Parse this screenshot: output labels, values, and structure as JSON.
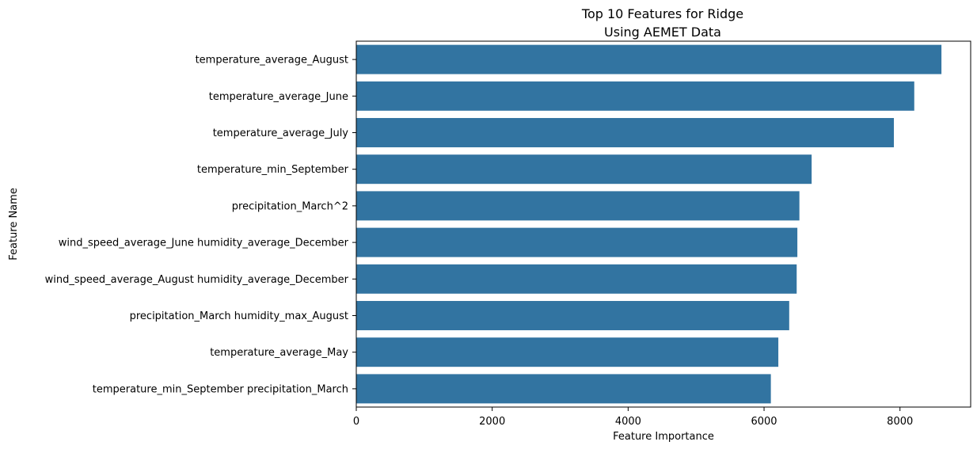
{
  "chart_data": {
    "type": "bar",
    "orientation": "horizontal",
    "title": "Top 10 Features for Ridge\nUsing AEMET Data",
    "xlabel": "Feature Importance",
    "ylabel": "Feature Name",
    "categories": [
      "temperature_average_August",
      "temperature_average_June",
      "temperature_average_July",
      "temperature_min_September",
      "precipitation_March^2",
      "wind_speed_average_June humidity_average_December",
      "wind_speed_average_August humidity_average_December",
      "precipitation_March humidity_max_August",
      "temperature_average_May",
      "temperature_min_September precipitation_March"
    ],
    "values": [
      8610,
      8210,
      7910,
      6700,
      6520,
      6490,
      6480,
      6370,
      6210,
      6100
    ],
    "xlim": [
      0,
      9040
    ],
    "xticks": [
      0,
      2000,
      4000,
      6000,
      8000
    ],
    "grid": false,
    "legend": "none",
    "bar_color": "#3274a1"
  }
}
